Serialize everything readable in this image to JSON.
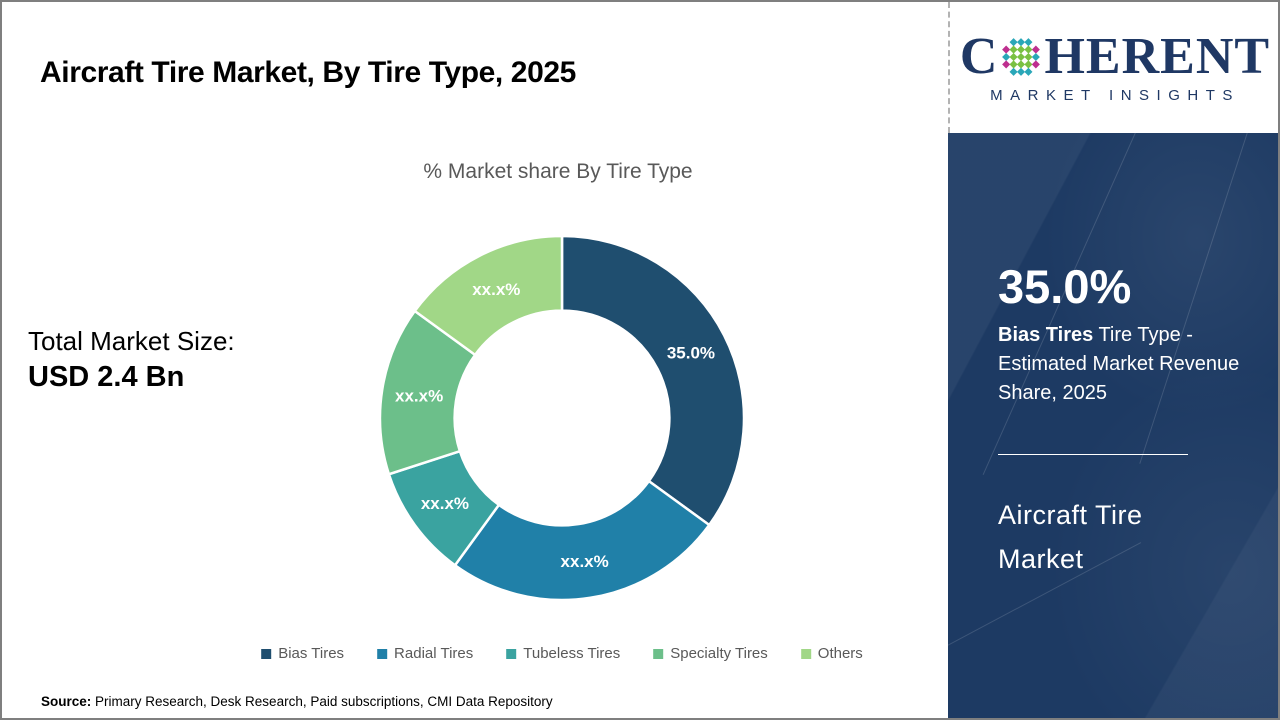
{
  "header": {
    "title": "Aircraft Tire Market, By Tire Type, 2025"
  },
  "brand": {
    "name_prefix": "C",
    "name_suffix": "HERENT",
    "tagline": "MARKET INSIGHTS"
  },
  "stats": {
    "total_label": "Total Market Size:",
    "total_value": "USD 2.4 Bn"
  },
  "sidebar": {
    "stat_value": "35.0%",
    "stat_bold": "Bias Tires",
    "stat_rest": " Tire Type - Estimated Market Revenue Share, 2025",
    "market_name": "Aircraft Tire Market"
  },
  "footer": {
    "source_label": "Source:",
    "source_text": " Primary Research, Desk Research, Paid subscriptions, CMI Data Repository"
  },
  "colors": {
    "sidebar_bg": "#1d3a63",
    "logo_navy": "#1f3864",
    "logo_teal": "#2aa7b8",
    "logo_green": "#7ac143",
    "logo_magenta": "#be2f8f",
    "title_text": "#000000",
    "subtitle_text": "#595959",
    "legend_text": "#595959"
  },
  "chart_data": {
    "type": "pie",
    "subtype": "donut",
    "title": "% Market share By Tire Type",
    "categories": [
      "Bias Tires",
      "Radial Tires",
      "Tubeless Tires",
      "Specialty Tires",
      "Others"
    ],
    "values": [
      35,
      25,
      10,
      15,
      15
    ],
    "value_labels": [
      "35.0%",
      "xx.x%",
      "xx.x%",
      "xx.x%",
      "xx.x%"
    ],
    "colors": [
      "#1f4e6f",
      "#2080a8",
      "#3aa3a0",
      "#6cbf8a",
      "#a1d787"
    ],
    "start_angle_deg": 0,
    "direction": "clockwise",
    "inner_radius_ratio": 0.59,
    "legend_position": "bottom"
  }
}
